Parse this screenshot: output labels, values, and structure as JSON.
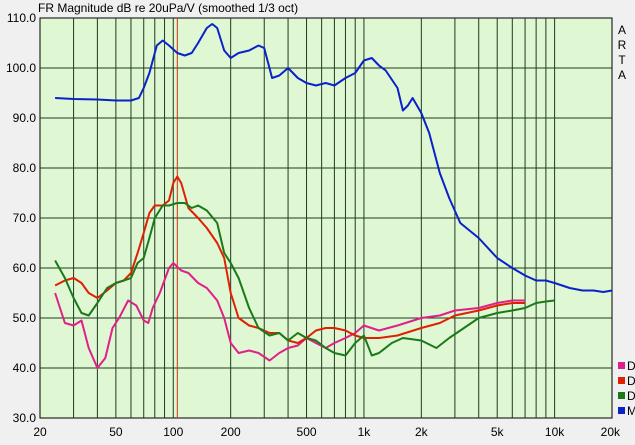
{
  "chart_data": {
    "type": "line",
    "title": "FR Magnitude dB re 20uPa/V (smoothed 1/3 oct)",
    "xscale": "log",
    "xlim": [
      20,
      20000
    ],
    "ylim": [
      30,
      110
    ],
    "x_tick_labels": [
      "20",
      "50",
      "100",
      "200",
      "500",
      "1k",
      "2k",
      "5k",
      "10k",
      "20k"
    ],
    "x_tick_values": [
      20,
      50,
      100,
      200,
      500,
      1000,
      2000,
      5000,
      10000,
      20000
    ],
    "y_tick_labels": [
      "30.0",
      "40.0",
      "50.0",
      "60.0",
      "70.0",
      "80.0",
      "90.0",
      "100.0",
      "110.0"
    ],
    "y_tick_values": [
      30,
      40,
      50,
      60,
      70,
      80,
      90,
      100,
      110
    ],
    "grid": true,
    "background": "#dff7d3",
    "brand_letters": [
      "A",
      "R",
      "T",
      "A"
    ],
    "marker_frequency": 105,
    "marker_color": "#d03010",
    "legend_placement": "bottom-right",
    "series": [
      {
        "label": "D",
        "color": "#e0208a",
        "points": [
          [
            24,
            55
          ],
          [
            27,
            49
          ],
          [
            30,
            48.5
          ],
          [
            33,
            49.5
          ],
          [
            36,
            44
          ],
          [
            40,
            40
          ],
          [
            44,
            42
          ],
          [
            48,
            48
          ],
          [
            52,
            50
          ],
          [
            58,
            53.5
          ],
          [
            64,
            52.5
          ],
          [
            70,
            49.5
          ],
          [
            74,
            49
          ],
          [
            78,
            52
          ],
          [
            85,
            55
          ],
          [
            95,
            60
          ],
          [
            100,
            61
          ],
          [
            110,
            59.5
          ],
          [
            120,
            59
          ],
          [
            135,
            57
          ],
          [
            150,
            56
          ],
          [
            170,
            53.5
          ],
          [
            185,
            50
          ],
          [
            200,
            45
          ],
          [
            220,
            43
          ],
          [
            250,
            43.5
          ],
          [
            280,
            43
          ],
          [
            320,
            41.5
          ],
          [
            360,
            43
          ],
          [
            400,
            44
          ],
          [
            450,
            44.5
          ],
          [
            500,
            46
          ],
          [
            560,
            45
          ],
          [
            630,
            44
          ],
          [
            700,
            45
          ],
          [
            800,
            46
          ],
          [
            900,
            47
          ],
          [
            1000,
            48.5
          ],
          [
            1200,
            47.5
          ],
          [
            1500,
            48.5
          ],
          [
            2000,
            50
          ],
          [
            2500,
            50.5
          ],
          [
            3000,
            51.5
          ],
          [
            4000,
            52
          ],
          [
            5000,
            53
          ],
          [
            6000,
            53.5
          ],
          [
            7000,
            53.5
          ]
        ]
      },
      {
        "label": "D",
        "color": "#e02000",
        "points": [
          [
            24,
            56.5
          ],
          [
            27,
            57.5
          ],
          [
            30,
            58
          ],
          [
            33,
            57
          ],
          [
            36,
            55
          ],
          [
            40,
            54
          ],
          [
            45,
            55.5
          ],
          [
            50,
            57
          ],
          [
            55,
            57.5
          ],
          [
            60,
            59
          ],
          [
            65,
            63
          ],
          [
            70,
            67
          ],
          [
            75,
            71
          ],
          [
            80,
            72.5
          ],
          [
            88,
            72.5
          ],
          [
            95,
            73.5
          ],
          [
            100,
            77
          ],
          [
            105,
            78.3
          ],
          [
            110,
            77
          ],
          [
            120,
            72
          ],
          [
            135,
            70
          ],
          [
            150,
            68
          ],
          [
            170,
            65
          ],
          [
            185,
            62
          ],
          [
            200,
            55
          ],
          [
            220,
            50
          ],
          [
            250,
            48.5
          ],
          [
            280,
            48
          ],
          [
            320,
            47
          ],
          [
            360,
            47
          ],
          [
            400,
            45.5
          ],
          [
            450,
            45
          ],
          [
            500,
            46
          ],
          [
            560,
            47.5
          ],
          [
            630,
            48
          ],
          [
            700,
            48
          ],
          [
            800,
            47.5
          ],
          [
            900,
            46.5
          ],
          [
            1000,
            46
          ],
          [
            1200,
            46
          ],
          [
            1500,
            46.5
          ],
          [
            2000,
            48
          ],
          [
            2500,
            49
          ],
          [
            3000,
            50.5
          ],
          [
            4000,
            51.5
          ],
          [
            5000,
            52.5
          ],
          [
            6000,
            53
          ],
          [
            7000,
            53
          ]
        ]
      },
      {
        "label": "D",
        "color": "#1a7a1a",
        "points": [
          [
            24,
            61.5
          ],
          [
            27,
            58
          ],
          [
            30,
            54
          ],
          [
            33,
            51
          ],
          [
            36,
            50.5
          ],
          [
            40,
            53
          ],
          [
            45,
            56
          ],
          [
            50,
            57
          ],
          [
            55,
            57.5
          ],
          [
            60,
            58
          ],
          [
            65,
            61
          ],
          [
            70,
            62
          ],
          [
            75,
            66
          ],
          [
            80,
            70
          ],
          [
            88,
            72.5
          ],
          [
            95,
            72.5
          ],
          [
            105,
            73
          ],
          [
            115,
            73
          ],
          [
            125,
            72
          ],
          [
            135,
            72.5
          ],
          [
            150,
            71.5
          ],
          [
            170,
            69
          ],
          [
            185,
            63
          ],
          [
            200,
            61
          ],
          [
            220,
            58
          ],
          [
            250,
            52
          ],
          [
            280,
            48
          ],
          [
            320,
            46.5
          ],
          [
            360,
            47
          ],
          [
            400,
            45.5
          ],
          [
            450,
            47
          ],
          [
            500,
            46
          ],
          [
            560,
            45.5
          ],
          [
            630,
            44
          ],
          [
            700,
            43
          ],
          [
            800,
            42.5
          ],
          [
            900,
            45
          ],
          [
            1000,
            46.5
          ],
          [
            1100,
            42.5
          ],
          [
            1200,
            43
          ],
          [
            1400,
            45
          ],
          [
            1600,
            46
          ],
          [
            2000,
            45.5
          ],
          [
            2400,
            44
          ],
          [
            2800,
            46
          ],
          [
            3200,
            47.5
          ],
          [
            4000,
            50
          ],
          [
            5000,
            51
          ],
          [
            6000,
            51.5
          ],
          [
            7000,
            52
          ],
          [
            8000,
            53
          ],
          [
            9000,
            53.3
          ],
          [
            10000,
            53.5
          ]
        ]
      },
      {
        "label": "M",
        "color": "#0a22c8",
        "points": [
          [
            24,
            94
          ],
          [
            30,
            93.8
          ],
          [
            40,
            93.7
          ],
          [
            50,
            93.5
          ],
          [
            60,
            93.5
          ],
          [
            66,
            94
          ],
          [
            70,
            96
          ],
          [
            75,
            99
          ],
          [
            82,
            104.5
          ],
          [
            88,
            105.5
          ],
          [
            95,
            104.5
          ],
          [
            105,
            103
          ],
          [
            115,
            102.5
          ],
          [
            125,
            103
          ],
          [
            135,
            105
          ],
          [
            150,
            108
          ],
          [
            160,
            108.8
          ],
          [
            170,
            108
          ],
          [
            185,
            103.5
          ],
          [
            200,
            102
          ],
          [
            220,
            103
          ],
          [
            250,
            103.5
          ],
          [
            280,
            104.5
          ],
          [
            300,
            104
          ],
          [
            330,
            98
          ],
          [
            360,
            98.5
          ],
          [
            400,
            100
          ],
          [
            450,
            98
          ],
          [
            500,
            97
          ],
          [
            560,
            96.5
          ],
          [
            630,
            97
          ],
          [
            700,
            96.5
          ],
          [
            800,
            98
          ],
          [
            900,
            99
          ],
          [
            1000,
            101.5
          ],
          [
            1100,
            102
          ],
          [
            1200,
            100.5
          ],
          [
            1300,
            99.5
          ],
          [
            1500,
            96
          ],
          [
            1600,
            91.5
          ],
          [
            1700,
            92.5
          ],
          [
            1800,
            94
          ],
          [
            2000,
            91
          ],
          [
            2200,
            87
          ],
          [
            2500,
            79
          ],
          [
            2800,
            74
          ],
          [
            3200,
            69
          ],
          [
            4000,
            66
          ],
          [
            5000,
            62
          ],
          [
            6000,
            60
          ],
          [
            7000,
            58.5
          ],
          [
            8000,
            57.5
          ],
          [
            9000,
            57.5
          ],
          [
            10000,
            57
          ],
          [
            12000,
            56
          ],
          [
            14000,
            55.5
          ],
          [
            16000,
            55.5
          ],
          [
            18000,
            55.2
          ],
          [
            20000,
            55.5
          ]
        ]
      }
    ]
  }
}
